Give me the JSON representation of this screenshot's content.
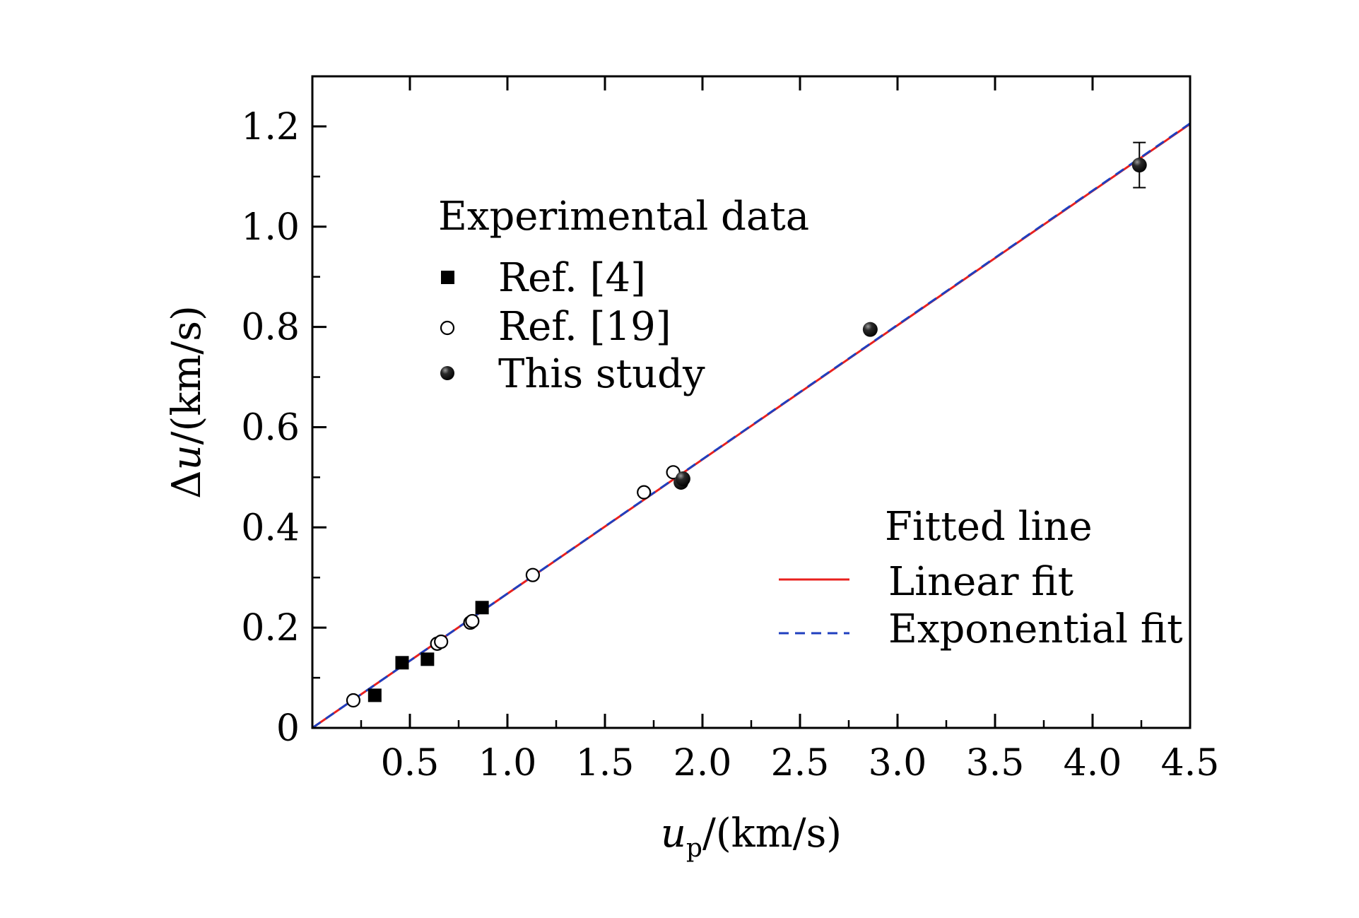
{
  "chart_data": {
    "type": "scatter",
    "xlabel": {
      "var": "u",
      "sub": "p",
      "unit": "/(km/s)"
    },
    "ylabel": {
      "prefix": "Δ",
      "var": "u",
      "unit": "/(km/s)"
    },
    "xlim": [
      0,
      4.5
    ],
    "ylim": [
      0,
      1.3
    ],
    "xticks": [
      {
        "value": 0.5,
        "label": "0.5"
      },
      {
        "value": 1.0,
        "label": "1.0"
      },
      {
        "value": 1.5,
        "label": "1.5"
      },
      {
        "value": 2.0,
        "label": "2.0"
      },
      {
        "value": 2.5,
        "label": "2.5"
      },
      {
        "value": 3.0,
        "label": "3.0"
      },
      {
        "value": 3.5,
        "label": "3.5"
      },
      {
        "value": 4.0,
        "label": "4.0"
      },
      {
        "value": 4.5,
        "label": "4.5"
      }
    ],
    "yticks": [
      {
        "value": 0,
        "label": "0"
      },
      {
        "value": 0.2,
        "label": "0.2"
      },
      {
        "value": 0.4,
        "label": "0.4"
      },
      {
        "value": 0.6,
        "label": "0.6"
      },
      {
        "value": 0.8,
        "label": "0.8"
      },
      {
        "value": 1.0,
        "label": "1.0"
      },
      {
        "value": 1.2,
        "label": "1.2"
      }
    ],
    "legend_experimental": {
      "title": "Experimental data",
      "placement": "top-left"
    },
    "legend_fit": {
      "title": "Fitted line",
      "placement": "bottom-right"
    },
    "series": [
      {
        "name": "Ref. [4]",
        "marker": "filled-square",
        "points": [
          {
            "x": 0.32,
            "y": 0.065
          },
          {
            "x": 0.46,
            "y": 0.13
          },
          {
            "x": 0.59,
            "y": 0.137
          },
          {
            "x": 0.87,
            "y": 0.24
          }
        ]
      },
      {
        "name": "Ref. [19]",
        "marker": "open-circle",
        "points": [
          {
            "x": 0.21,
            "y": 0.055
          },
          {
            "x": 0.64,
            "y": 0.168
          },
          {
            "x": 0.66,
            "y": 0.172
          },
          {
            "x": 0.81,
            "y": 0.21
          },
          {
            "x": 0.82,
            "y": 0.213
          },
          {
            "x": 1.13,
            "y": 0.305
          },
          {
            "x": 1.7,
            "y": 0.47
          },
          {
            "x": 1.85,
            "y": 0.51
          }
        ]
      },
      {
        "name": "This study",
        "marker": "filled-sphere",
        "points": [
          {
            "x": 1.89,
            "y": 0.49,
            "err": 0
          },
          {
            "x": 1.9,
            "y": 0.497,
            "err": 0
          },
          {
            "x": 2.86,
            "y": 0.795,
            "err": 0
          },
          {
            "x": 4.24,
            "y": 1.123,
            "err": 0.045
          }
        ]
      }
    ],
    "fits": [
      {
        "name": "Linear fit",
        "style": "solid",
        "color": "#e8201e",
        "x": [
          0,
          4.5
        ],
        "y": [
          0,
          1.205
        ]
      },
      {
        "name": "Exponential fit",
        "style": "dashed",
        "color": "#1f3fbf",
        "x": [
          0,
          4.5
        ],
        "y": [
          0,
          1.206
        ]
      }
    ]
  }
}
